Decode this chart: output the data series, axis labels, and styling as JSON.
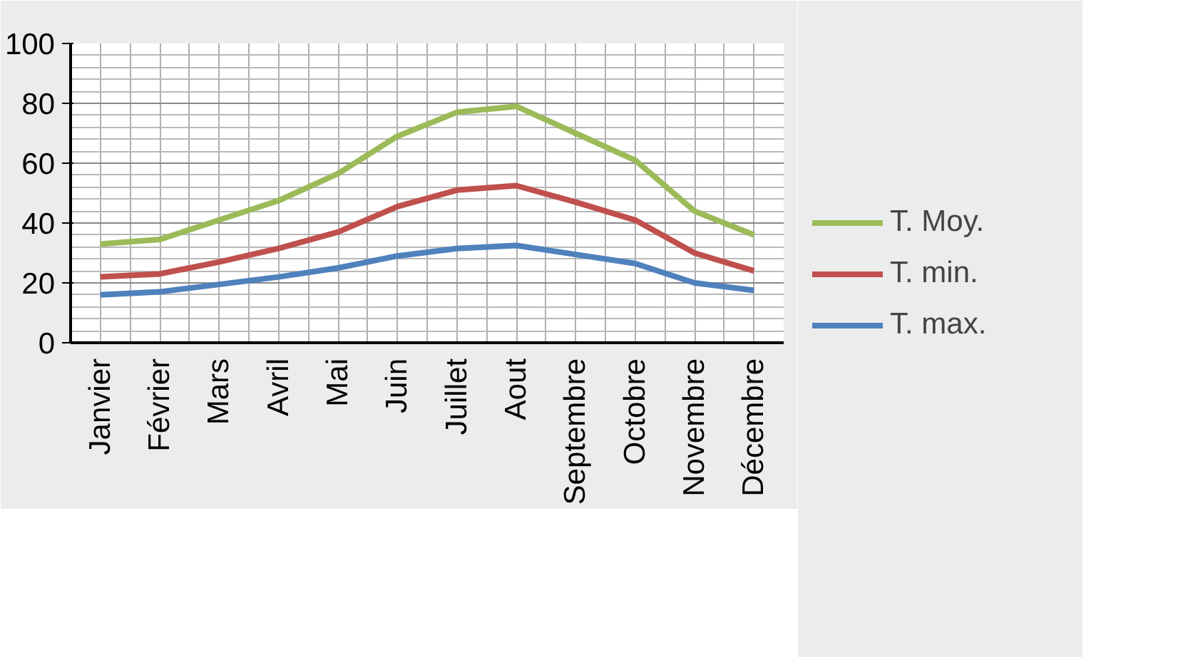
{
  "chart_data": {
    "type": "line",
    "categories": [
      "Janvier",
      "Février",
      "Mars",
      "Avril",
      "Mai",
      "Juin",
      "Juillet",
      "Aout",
      "Septembre",
      "Octobre",
      "Novembre",
      "Décembre"
    ],
    "series": [
      {
        "name": "T. Moy.",
        "color": "#9bbb59",
        "values": [
          33,
          34.5,
          41,
          47.5,
          56.5,
          69,
          77,
          79,
          70,
          61,
          44,
          36
        ]
      },
      {
        "name": "T. min.",
        "color": "#c0504d",
        "values": [
          22,
          23,
          27,
          31.5,
          37,
          45.5,
          51,
          52.5,
          47,
          41,
          30,
          24
        ]
      },
      {
        "name": "T. max.",
        "color": "#4f81bd",
        "values": [
          16,
          17,
          19.5,
          22,
          25,
          29,
          31.5,
          32.5,
          29.5,
          26.5,
          20,
          17.5
        ]
      }
    ],
    "ylim": [
      0,
      100
    ],
    "yticks": [
      0,
      20,
      40,
      60,
      80,
      100
    ],
    "grid": true,
    "legend": "right",
    "marker": "none",
    "line_style": "solid"
  }
}
